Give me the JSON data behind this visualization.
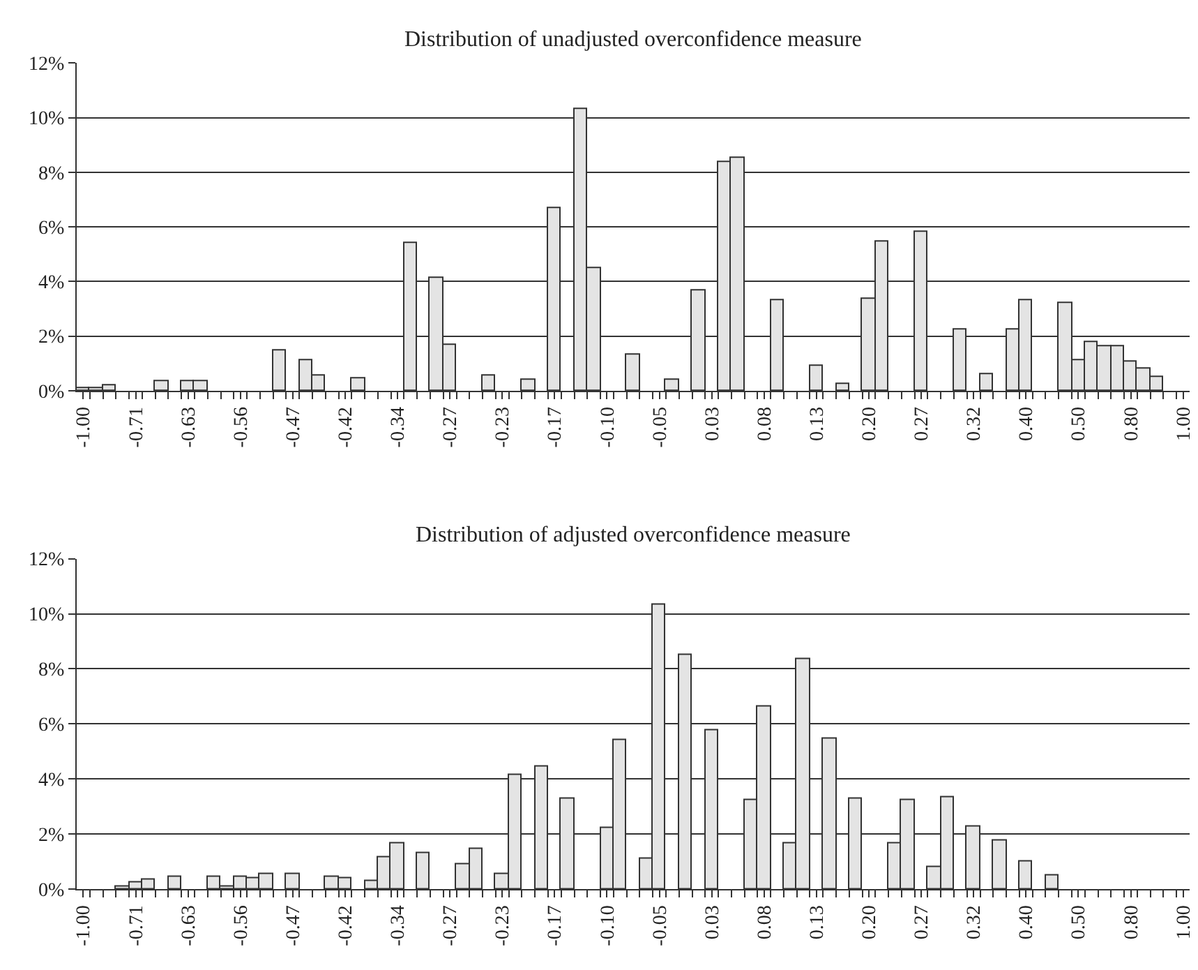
{
  "chart_data": [
    {
      "type": "bar",
      "title": "Distribution of unadjusted overconfidence measure",
      "categories": [
        "-1.00",
        null,
        null,
        null,
        "-0.71",
        null,
        null,
        null,
        "-0.63",
        null,
        null,
        null,
        "-0.56",
        null,
        null,
        null,
        "-0.47",
        null,
        null,
        null,
        "-0.42",
        null,
        null,
        null,
        "-0.34",
        null,
        null,
        null,
        "-0.27",
        null,
        null,
        null,
        "-0.23",
        null,
        null,
        null,
        "-0.17",
        null,
        null,
        null,
        "-0.10",
        null,
        null,
        null,
        "-0.05",
        null,
        null,
        null,
        "0.03",
        null,
        null,
        null,
        "0.08",
        null,
        null,
        null,
        "0.13",
        null,
        null,
        null,
        "0.20",
        null,
        null,
        null,
        "0.27",
        null,
        null,
        null,
        "0.32",
        null,
        null,
        null,
        "0.40",
        null,
        null,
        null,
        "0.50",
        null,
        null,
        null,
        "0.80",
        null,
        null,
        null,
        "1.00"
      ],
      "values": [
        0.07,
        0.07,
        0.2,
        0,
        0,
        0,
        0.37,
        0,
        0.37,
        0.33,
        0,
        0,
        0,
        0,
        0,
        1.47,
        0,
        1.14,
        0.54,
        0,
        0,
        0.47,
        0,
        0,
        0,
        5.42,
        0,
        4.15,
        1.67,
        0,
        0,
        0.54,
        0,
        0,
        0.42,
        0,
        6.66,
        0,
        10.33,
        4.47,
        0,
        0,
        1.3,
        0,
        0,
        0.42,
        0,
        3.68,
        0,
        8.36,
        8.51,
        0,
        0,
        3.31,
        0,
        0,
        0.89,
        0,
        0.25,
        0,
        3.34,
        5.48,
        0,
        0,
        5.82,
        0,
        0,
        2.22,
        0,
        0.58,
        0,
        2.26,
        3.29,
        0,
        0,
        3.21,
        1.14,
        1.76,
        1.64,
        1.64,
        1.04,
        0.8,
        0.5,
        0,
        0
      ],
      "color": "#e4e4e4",
      "ylim": [
        0,
        12
      ],
      "yticks": [
        {
          "value": 0,
          "label": "0%"
        },
        {
          "value": 2,
          "label": "2%"
        },
        {
          "value": 4,
          "label": "4%"
        },
        {
          "value": 6,
          "label": "6%"
        },
        {
          "value": 8,
          "label": "8%"
        },
        {
          "value": 10,
          "label": "10%"
        },
        {
          "value": 12,
          "label": "12%"
        }
      ],
      "grid": "y"
    },
    {
      "type": "bar",
      "title": "Distribution of adjusted overconfidence measure",
      "categories": [
        "-1.00",
        null,
        null,
        null,
        "-0.71",
        null,
        null,
        null,
        "-0.63",
        null,
        null,
        null,
        "-0.56",
        null,
        null,
        null,
        "-0.47",
        null,
        null,
        null,
        "-0.42",
        null,
        null,
        null,
        "-0.34",
        null,
        null,
        null,
        "-0.27",
        null,
        null,
        null,
        "-0.23",
        null,
        null,
        null,
        "-0.17",
        null,
        null,
        null,
        "-0.10",
        null,
        null,
        null,
        "-0.05",
        null,
        null,
        null,
        "0.03",
        null,
        null,
        null,
        "0.08",
        null,
        null,
        null,
        "0.13",
        null,
        null,
        null,
        "0.20",
        null,
        null,
        null,
        "0.27",
        null,
        null,
        null,
        "0.32",
        null,
        null,
        null,
        "0.40",
        null,
        null,
        null,
        "0.50",
        null,
        null,
        null,
        "0.80",
        null,
        null,
        null,
        "1.00"
      ],
      "values": [
        0,
        0,
        0,
        0.08,
        0.22,
        0.35,
        0,
        0.47,
        0,
        0,
        0.42,
        0.08,
        0.45,
        0.38,
        0.54,
        0,
        0.54,
        0,
        0,
        0.42,
        0.38,
        0,
        0.27,
        1.14,
        1.67,
        0,
        1.3,
        0,
        0,
        0.89,
        1.45,
        0,
        0.57,
        4.15,
        0,
        4.47,
        0,
        3.29,
        0,
        0,
        2.21,
        5.43,
        0,
        1.1,
        10.33,
        0,
        8.5,
        0,
        5.79,
        0,
        0,
        3.21,
        6.62,
        0,
        1.64,
        8.36,
        0,
        5.48,
        0,
        3.28,
        0,
        0,
        1.64,
        3.21,
        0,
        0.8,
        3.34,
        0,
        2.26,
        0,
        1.77,
        0,
        1.0,
        0,
        0.5,
        0,
        0,
        0,
        0,
        0,
        0,
        0,
        0,
        0,
        0
      ],
      "color": "#e4e4e4",
      "ylim": [
        0,
        12
      ],
      "yticks": [
        {
          "value": 0,
          "label": "0%"
        },
        {
          "value": 2,
          "label": "2%"
        },
        {
          "value": 4,
          "label": "4%"
        },
        {
          "value": 6,
          "label": "6%"
        },
        {
          "value": 8,
          "label": "8%"
        },
        {
          "value": 10,
          "label": "10%"
        },
        {
          "value": 12,
          "label": "12%"
        }
      ],
      "grid": "y"
    }
  ]
}
